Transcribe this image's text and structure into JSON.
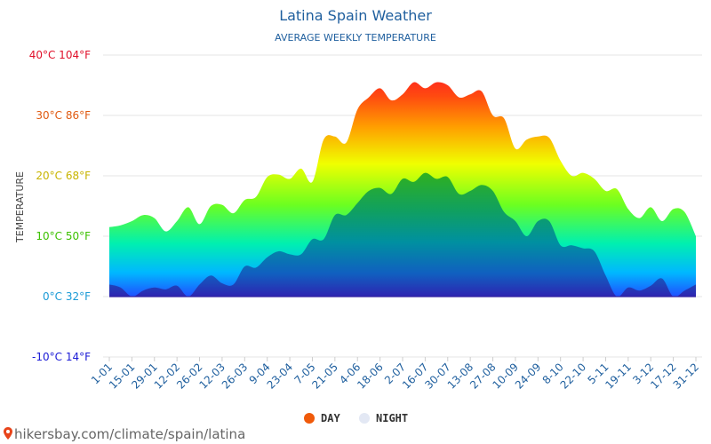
{
  "chart_data": {
    "type": "area",
    "title": "Latina Spain Weather",
    "subtitle": "AVERAGE WEEKLY TEMPERATURE",
    "ylabel": "TEMPERATURE",
    "xlabel": "",
    "ylim": [
      -10,
      40
    ],
    "y_ticks": [
      {
        "value": 40,
        "label": "40°C 104°F",
        "color": "#e0102a"
      },
      {
        "value": 30,
        "label": "30°C 86°F",
        "color": "#e05a10"
      },
      {
        "value": 20,
        "label": "20°C 68°F",
        "color": "#c8b400"
      },
      {
        "value": 10,
        "label": "10°C 50°F",
        "color": "#3cc000"
      },
      {
        "value": 0,
        "label": "0°C 32°F",
        "color": "#1a9ad6"
      },
      {
        "value": -10,
        "label": "-10°C 14°F",
        "color": "#1a1ad6"
      }
    ],
    "x_tick_labels": [
      "1-01",
      "15-01",
      "29-01",
      "12-02",
      "26-02",
      "12-03",
      "26-03",
      "9-04",
      "23-04",
      "7-05",
      "21-05",
      "4-06",
      "18-06",
      "2-07",
      "16-07",
      "30-07",
      "13-08",
      "27-08",
      "10-09",
      "24-09",
      "8-10",
      "22-10",
      "5-11",
      "19-11",
      "3-12",
      "17-12",
      "31-12"
    ],
    "weeks": 53,
    "series": [
      {
        "name": "DAY",
        "color": "#f05a0a",
        "values": [
          11.5,
          11.8,
          12.5,
          13.5,
          13.0,
          10.8,
          12.5,
          14.8,
          12.0,
          15.0,
          15.2,
          13.8,
          16.0,
          16.5,
          19.8,
          20.2,
          19.5,
          21.2,
          19.0,
          26.0,
          26.5,
          25.5,
          31.0,
          33.0,
          34.5,
          32.5,
          33.5,
          35.5,
          34.5,
          35.5,
          35.0,
          33.0,
          33.5,
          34.0,
          30.0,
          29.5,
          24.5,
          26.0,
          26.5,
          26.3,
          22.5,
          20.0,
          20.5,
          19.5,
          17.5,
          17.8,
          14.5,
          13.0,
          14.8,
          12.5,
          14.5,
          14.0,
          10.0
        ]
      },
      {
        "name": "NIGHT",
        "color": "#e8ecf8",
        "values": [
          2.0,
          1.5,
          0.0,
          1.0,
          1.5,
          1.2,
          1.8,
          0.0,
          2.0,
          3.5,
          2.2,
          2.0,
          5.0,
          4.8,
          6.5,
          7.5,
          7.0,
          7.0,
          9.5,
          9.5,
          13.5,
          13.5,
          15.5,
          17.5,
          18.0,
          17.0,
          19.5,
          19.0,
          20.5,
          19.5,
          19.8,
          17.0,
          17.5,
          18.5,
          17.5,
          14.0,
          12.5,
          10.0,
          12.5,
          12.5,
          8.5,
          8.5,
          8.0,
          7.5,
          3.5,
          0.0,
          1.5,
          1.0,
          1.8,
          3.0,
          0.0,
          1.0,
          2.0
        ]
      }
    ],
    "legend": {
      "placement": "bottom",
      "items": [
        {
          "label": "DAY",
          "color": "#f05a0a"
        },
        {
          "label": "NIGHT",
          "color": "#e8ecf8"
        }
      ]
    },
    "grid": true
  },
  "footer": {
    "watermark": "hikersbay.com/climate/spain/latina",
    "pin_icon": "map-pin-icon"
  }
}
